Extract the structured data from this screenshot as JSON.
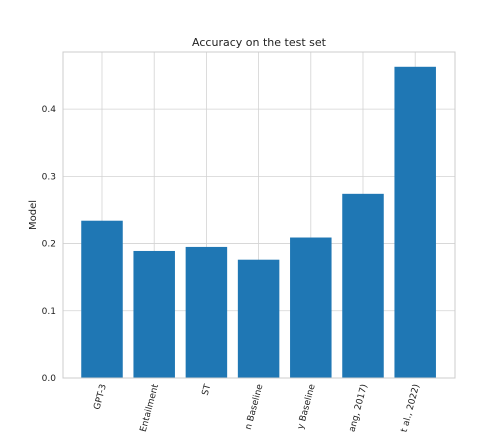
{
  "chart_data": {
    "type": "bar",
    "title": "Accuracy on the test set",
    "xlabel": "",
    "ylabel": "Model",
    "categories": [
      "GPT-3",
      "Entailment",
      "ST",
      "n Baseline",
      "y Baseline",
      "ang, 2017)",
      "t al., 2022)"
    ],
    "values": [
      0.234,
      0.189,
      0.195,
      0.176,
      0.209,
      0.274,
      0.463
    ],
    "ylim": [
      0,
      0.485
    ],
    "yticks": [
      0.0,
      0.1,
      0.2,
      0.3,
      0.4
    ],
    "ytick_labels": [
      "0.0",
      "0.1",
      "0.2",
      "0.3",
      "0.4"
    ],
    "grid": true,
    "bar_color": "#1f77b4"
  }
}
